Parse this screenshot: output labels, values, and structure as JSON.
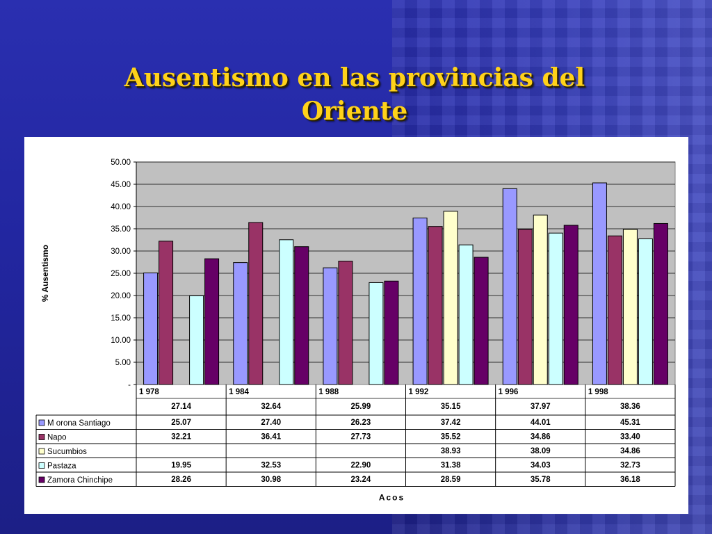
{
  "slide": {
    "title_line1": "Ausentismo en las provincias del",
    "title_line2": "Oriente"
  },
  "chart_data": {
    "type": "bar",
    "ylabel": "% Ausentismo",
    "xlabel": "Acos",
    "ylim": [
      0,
      50
    ],
    "yticks": [
      "-",
      "5.00",
      "10.00",
      "15.00",
      "20.00",
      "25.00",
      "30.00",
      "35.00",
      "40.00",
      "45.00",
      "50.00"
    ],
    "ytick_values": [
      0,
      5,
      10,
      15,
      20,
      25,
      30,
      35,
      40,
      45,
      50
    ],
    "grid": true,
    "categories": [
      "1 978",
      "1 984",
      "1 988",
      "1  992",
      "1 996",
      "1  998"
    ],
    "totals": [
      "27.14",
      "32.64",
      "25.99",
      "35.15",
      "37.97",
      "38.36"
    ],
    "series": [
      {
        "name": "M orona Santiago",
        "color": "#9999ff",
        "values": [
          25.07,
          27.4,
          26.23,
          37.42,
          44.01,
          45.31
        ],
        "labels": [
          "25.07",
          "27.40",
          "26.23",
          "37.42",
          "44.01",
          "45.31"
        ]
      },
      {
        "name": "Napo",
        "color": "#993366",
        "values": [
          32.21,
          36.41,
          27.73,
          35.52,
          34.86,
          33.4
        ],
        "labels": [
          "32.21",
          "36.41",
          "27.73",
          "35.52",
          "34.86",
          "33.40"
        ]
      },
      {
        "name": "Sucumbios",
        "color": "#ffffcc",
        "values": [
          null,
          null,
          null,
          38.93,
          38.09,
          34.86
        ],
        "labels": [
          "",
          "",
          "",
          "38.93",
          "38.09",
          "34.86"
        ]
      },
      {
        "name": "Pastaza",
        "color": "#ccffff",
        "values": [
          19.95,
          32.53,
          22.9,
          31.38,
          34.03,
          32.73
        ],
        "labels": [
          "19.95",
          "32.53",
          "22.90",
          "31.38",
          "34.03",
          "32.73"
        ]
      },
      {
        "name": "Zamora Chinchipe",
        "color": "#660066",
        "values": [
          28.26,
          30.98,
          23.24,
          28.59,
          35.78,
          36.18
        ],
        "labels": [
          "28.26",
          "30.98",
          "23.24",
          "28.59",
          "35.78",
          "36.18"
        ]
      }
    ],
    "plot_background": "#c0c0c0"
  }
}
